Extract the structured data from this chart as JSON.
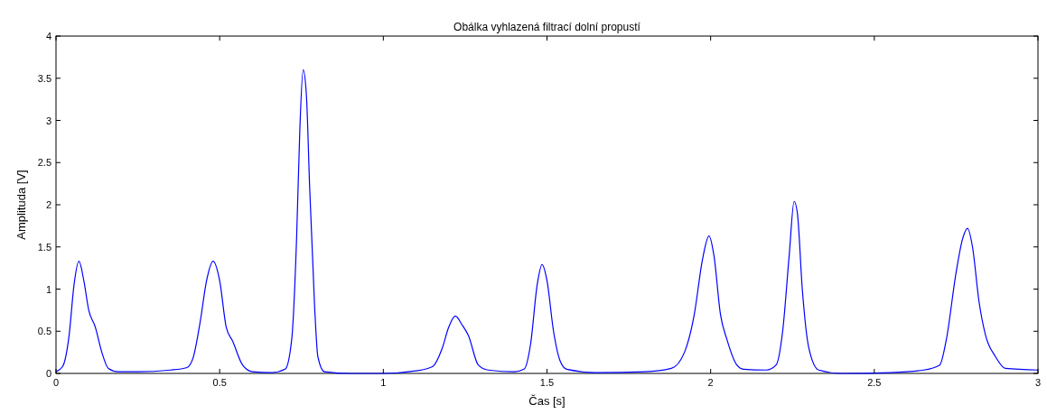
{
  "chart_data": {
    "type": "line",
    "title": "Obálka vyhlazená filtrací dolní propustí",
    "xlabel": "Čas [s]",
    "ylabel": "Amplituda [V]",
    "xlim": [
      0,
      3
    ],
    "xticks": [
      0,
      0.5,
      1,
      1.5,
      2,
      2.5,
      3
    ],
    "ylim": [
      0,
      4
    ],
    "yticks": [
      0,
      0.5,
      1,
      1.5,
      2,
      2.5,
      3,
      3.5,
      4
    ],
    "grid": false,
    "series": [
      {
        "color": "#0000ff",
        "x": [
          0,
          0.02,
          0.04,
          0.055,
          0.07,
          0.085,
          0.1,
          0.12,
          0.14,
          0.16,
          0.19,
          0.25,
          0.35,
          0.4,
          0.42,
          0.44,
          0.46,
          0.48,
          0.5,
          0.52,
          0.54,
          0.57,
          0.6,
          0.66,
          0.7,
          0.72,
          0.735,
          0.745,
          0.755,
          0.765,
          0.775,
          0.79,
          0.8,
          0.82,
          0.9,
          1,
          1.1,
          1.15,
          1.18,
          1.2,
          1.22,
          1.24,
          1.26,
          1.29,
          1.32,
          1.4,
          1.43,
          1.45,
          1.47,
          1.485,
          1.5,
          1.52,
          1.54,
          1.56,
          1.65,
          1.8,
          1.88,
          1.92,
          1.95,
          1.975,
          1.995,
          2.01,
          2.03,
          2.05,
          2.08,
          2.1,
          2.17,
          2.2,
          2.22,
          2.24,
          2.255,
          2.265,
          2.28,
          2.3,
          2.33,
          2.4,
          2.55,
          2.65,
          2.7,
          2.72,
          2.75,
          2.77,
          2.785,
          2.8,
          2.82,
          2.84,
          2.87,
          2.9,
          3
        ],
        "values": [
          0.02,
          0.08,
          0.45,
          1.05,
          1.33,
          1.1,
          0.75,
          0.55,
          0.25,
          0.06,
          0.02,
          0.02,
          0.04,
          0.07,
          0.2,
          0.6,
          1.1,
          1.33,
          1.1,
          0.55,
          0.38,
          0.1,
          0.02,
          0.01,
          0.05,
          0.4,
          1.6,
          2.9,
          3.6,
          3.3,
          2.2,
          0.8,
          0.2,
          0.02,
          0,
          0,
          0.03,
          0.08,
          0.3,
          0.55,
          0.68,
          0.58,
          0.45,
          0.1,
          0.04,
          0.02,
          0.05,
          0.35,
          1.05,
          1.29,
          1.1,
          0.5,
          0.15,
          0.05,
          0.01,
          0.02,
          0.06,
          0.25,
          0.7,
          1.35,
          1.63,
          1.4,
          0.7,
          0.4,
          0.1,
          0.05,
          0.04,
          0.1,
          0.5,
          1.4,
          2.04,
          1.9,
          1,
          0.3,
          0.04,
          0,
          0.01,
          0.04,
          0.1,
          0.4,
          1.2,
          1.6,
          1.72,
          1.5,
          0.85,
          0.45,
          0.2,
          0.06,
          0.04
        ]
      }
    ]
  }
}
